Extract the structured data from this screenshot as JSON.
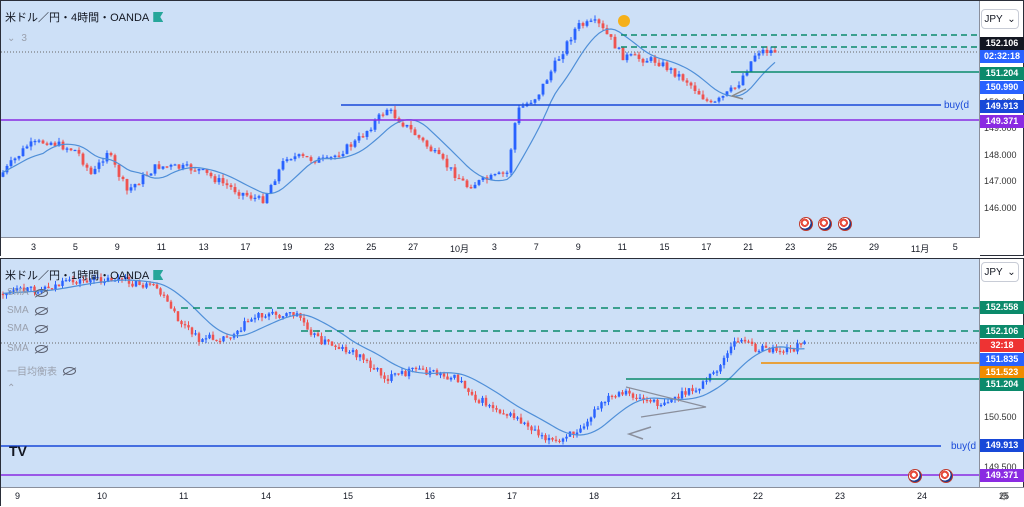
{
  "top": {
    "title": "米ドル／円・4時間・OANDA",
    "sub_label": "3",
    "currency": "JPY",
    "price_ticks": [
      "146.000",
      "147.000",
      "148.000",
      "149.000",
      "150.000"
    ],
    "price_labels": [
      {
        "text": "152.106",
        "color": "#131722"
      },
      {
        "text": "02:32:18",
        "color": "#2962ff"
      },
      {
        "text": "151.204",
        "color": "#0b8a6b"
      },
      {
        "text": "150.990",
        "color": "#2962ff"
      },
      {
        "text": "149.913",
        "color": "#1848d8"
      },
      {
        "text": "149.371",
        "color": "#8a2be2"
      }
    ],
    "time_ticks": [
      "3",
      "5",
      "9",
      "11",
      "13",
      "17",
      "19",
      "23",
      "25",
      "27",
      "10月",
      "3",
      "7",
      "9",
      "11",
      "15",
      "17",
      "21",
      "23",
      "25",
      "29",
      "11月",
      "5"
    ],
    "buy_label": "buy(d"
  },
  "bottom": {
    "title": "米ドル／円・1時間・OANDA",
    "currency": "JPY",
    "indicators": [
      "SMA",
      "SMA",
      "SMA",
      "SMA",
      "一目均衡表"
    ],
    "price_ticks": [
      "150.500",
      "149.500"
    ],
    "price_labels": [
      {
        "text": "152.558",
        "color": "#0b8a6b"
      },
      {
        "text": "152.106",
        "color": "#0b8a6b"
      },
      {
        "text": "32:18",
        "color": "#e33"
      },
      {
        "text": "151.835",
        "color": "#2962ff"
      },
      {
        "text": "151.523",
        "color": "#f08c00"
      },
      {
        "text": "151.204",
        "color": "#0b8a6b"
      },
      {
        "text": "149.913",
        "color": "#1848d8"
      },
      {
        "text": "149.371",
        "color": "#8a2be2"
      }
    ],
    "time_ticks": [
      "9",
      "10",
      "11",
      "14",
      "15",
      "16",
      "17",
      "18",
      "21",
      "22",
      "23",
      "24",
      "25"
    ],
    "buy_label": "buy(d",
    "logo": "TV"
  },
  "colors": {
    "up": "#2962ff",
    "down": "#ef5350",
    "ma": "#4f8fd8",
    "support": "#1848d8",
    "purple": "#8a2be2",
    "teal": "#0b8a6b",
    "orange": "#f08c00"
  }
}
